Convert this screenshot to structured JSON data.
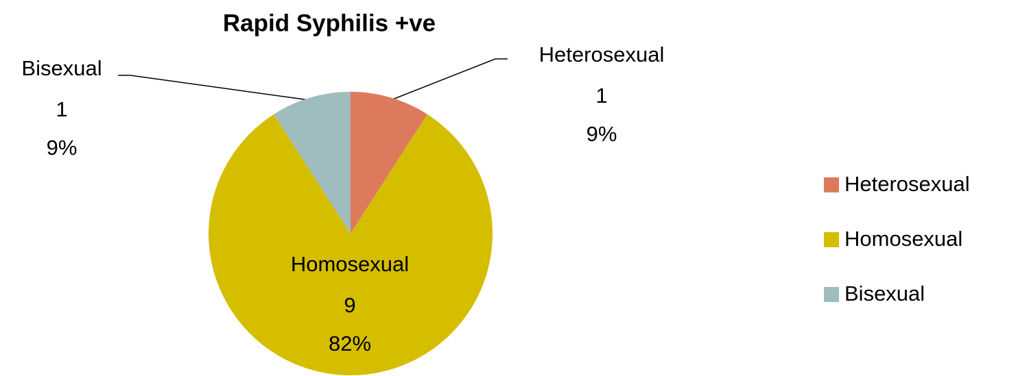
{
  "chart_data": {
    "type": "pie",
    "title": "Rapid Syphilis +ve",
    "categories": [
      "Heterosexual",
      "Homosexual",
      "Bisexual"
    ],
    "values": [
      1,
      9,
      1
    ],
    "percent_labels": [
      "9%",
      "82%",
      "9%"
    ],
    "colors": [
      "#dd7a5e",
      "#d5bd00",
      "#9fbcbe"
    ],
    "legend": "right"
  }
}
